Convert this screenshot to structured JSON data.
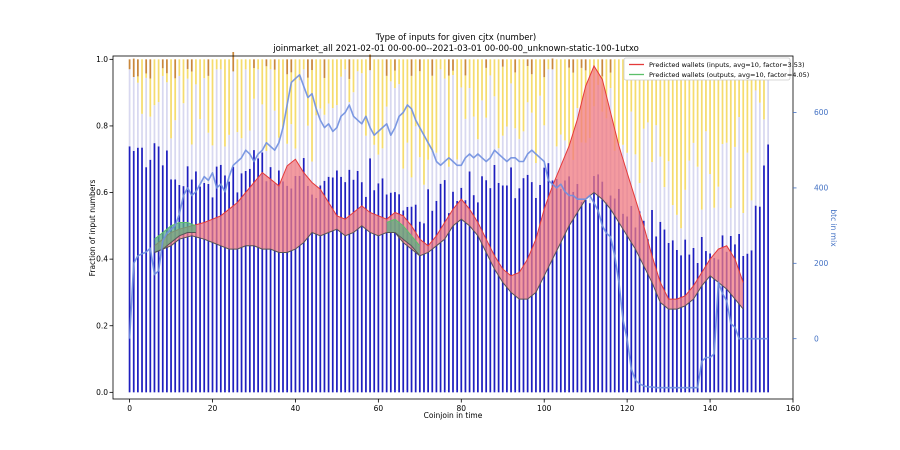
{
  "chart_data": {
    "type": "bar",
    "title": "Type of inputs for given cjtx (number)",
    "subtitle": "joinmarket_all 2021-02-01 00-00-00--2021-03-01 00-00-00_unknown-static-100-1utxo",
    "xlabel": "Coinjoin in time",
    "ylabel": "Fraction of input numbers",
    "ylabel_right": "btc in mix",
    "xlim": [
      -4,
      160
    ],
    "ylim": [
      -0.02,
      1.01
    ],
    "ylim_right": [
      -160,
      750
    ],
    "xticks": [
      "0",
      "20",
      "40",
      "60",
      "80",
      "100",
      "120",
      "140",
      "160"
    ],
    "yticks": [
      "0.0",
      "0.2",
      "0.4",
      "0.6",
      "0.8",
      "1.0"
    ],
    "yticks_right": [
      "0",
      "200",
      "400",
      "600"
    ],
    "grid": false,
    "legend_position": "top-right",
    "colors": {
      "fresh": "#1f1fbf",
      "remix": "#d8d8f0",
      "other": "#f5dc6e",
      "rare": "#c9883c",
      "btc_line": "#6f8fe0",
      "pred_inputs": "#e43a3a",
      "pred_inputs_fill": "#f07a80",
      "pred_outputs": "#5cbf6a",
      "pred_outputs_fill": "#5cae80"
    },
    "bar_series": {
      "fresh_fraction_key_x": [
        0,
        10,
        20,
        30,
        40,
        50,
        60,
        70,
        80,
        90,
        100,
        110,
        120,
        130,
        140,
        150,
        154
      ],
      "fresh_fraction_key_y": [
        0.74,
        0.66,
        0.63,
        0.68,
        0.66,
        0.62,
        0.65,
        0.56,
        0.6,
        0.64,
        0.63,
        0.62,
        0.58,
        0.44,
        0.45,
        0.44,
        0.72
      ]
    },
    "series": [
      {
        "name": "Predicted wallets (inputs, avg=10, factor=3.53)",
        "x": [
          6,
          8,
          10,
          12,
          15,
          18,
          20,
          22,
          24,
          26,
          28,
          30,
          32,
          34,
          36,
          38,
          40,
          42,
          44,
          46,
          48,
          50,
          52,
          54,
          56,
          58,
          60,
          62,
          64,
          66,
          68,
          70,
          72,
          74,
          76,
          78,
          80,
          82,
          84,
          86,
          88,
          90,
          92,
          94,
          96,
          98,
          100,
          102,
          104,
          106,
          108,
          110,
          112,
          114,
          116,
          118,
          120,
          122,
          124,
          126,
          128,
          130,
          132,
          134,
          136,
          138,
          140,
          142,
          144,
          146,
          148
        ],
        "upper": [
          0.44,
          0.46,
          0.48,
          0.49,
          0.5,
          0.51,
          0.52,
          0.53,
          0.55,
          0.57,
          0.6,
          0.63,
          0.66,
          0.64,
          0.62,
          0.68,
          0.7,
          0.66,
          0.63,
          0.61,
          0.57,
          0.53,
          0.52,
          0.54,
          0.56,
          0.54,
          0.53,
          0.52,
          0.54,
          0.53,
          0.5,
          0.46,
          0.44,
          0.47,
          0.51,
          0.55,
          0.58,
          0.55,
          0.51,
          0.46,
          0.41,
          0.37,
          0.35,
          0.36,
          0.4,
          0.46,
          0.55,
          0.62,
          0.68,
          0.74,
          0.82,
          0.92,
          0.98,
          0.94,
          0.84,
          0.74,
          0.66,
          0.58,
          0.5,
          0.41,
          0.33,
          0.28,
          0.28,
          0.29,
          0.32,
          0.36,
          0.4,
          0.43,
          0.44,
          0.4,
          0.33
        ],
        "lower": [
          0.42,
          0.43,
          0.44,
          0.46,
          0.47,
          0.46,
          0.45,
          0.44,
          0.43,
          0.43,
          0.44,
          0.44,
          0.43,
          0.43,
          0.42,
          0.42,
          0.43,
          0.45,
          0.48,
          0.47,
          0.48,
          0.49,
          0.47,
          0.48,
          0.5,
          0.48,
          0.47,
          0.48,
          0.48,
          0.45,
          0.43,
          0.41,
          0.42,
          0.44,
          0.46,
          0.5,
          0.52,
          0.5,
          0.47,
          0.42,
          0.37,
          0.33,
          0.3,
          0.28,
          0.28,
          0.3,
          0.35,
          0.4,
          0.45,
          0.5,
          0.54,
          0.58,
          0.6,
          0.58,
          0.55,
          0.51,
          0.47,
          0.43,
          0.38,
          0.33,
          0.27,
          0.25,
          0.25,
          0.26,
          0.28,
          0.32,
          0.35,
          0.33,
          0.31,
          0.28,
          0.25
        ]
      },
      {
        "name": "Predicted wallets (outputs, avg=10, factor=4.05)",
        "segments": [
          {
            "x": [
              6,
              8,
              10,
              12,
              14,
              16
            ],
            "upper": [
              0.46,
              0.48,
              0.5,
              0.51,
              0.51,
              0.5
            ],
            "lower": [
              0.42,
              0.43,
              0.45,
              0.47,
              0.48,
              0.48
            ]
          },
          {
            "x": [
              62,
              64,
              66,
              68,
              70
            ],
            "upper": [
              0.51,
              0.52,
              0.5,
              0.47,
              0.44
            ],
            "lower": [
              0.48,
              0.48,
              0.46,
              0.44,
              0.41
            ]
          }
        ]
      },
      {
        "name": "btc in mix",
        "axis": "right",
        "x": [
          0,
          1,
          2,
          3,
          4,
          5,
          6,
          7,
          8,
          9,
          10,
          11,
          12,
          13,
          14,
          15,
          16,
          17,
          18,
          19,
          20,
          21,
          22,
          23,
          24,
          25,
          26,
          27,
          28,
          29,
          30,
          31,
          32,
          33,
          34,
          35,
          36,
          37,
          38,
          39,
          40,
          41,
          42,
          43,
          44,
          45,
          46,
          47,
          48,
          49,
          50,
          51,
          52,
          53,
          54,
          55,
          56,
          57,
          58,
          59,
          60,
          61,
          62,
          63,
          64,
          65,
          66,
          67,
          68,
          69,
          70,
          71,
          72,
          73,
          74,
          75,
          76,
          77,
          78,
          79,
          80,
          81,
          82,
          83,
          84,
          85,
          86,
          87,
          88,
          89,
          90,
          91,
          92,
          93,
          94,
          95,
          96,
          97,
          98,
          99,
          100,
          101,
          102,
          103,
          104,
          105,
          106,
          107,
          108,
          109,
          110,
          111,
          112,
          113,
          114,
          115,
          116,
          117,
          118,
          119,
          120,
          121,
          122,
          123,
          124,
          125,
          126,
          127,
          128,
          129,
          130,
          131,
          132,
          133,
          134,
          135,
          136,
          137,
          138,
          139,
          140,
          141,
          142,
          143,
          144,
          145,
          146,
          147,
          148,
          149,
          150,
          151,
          152,
          153,
          154
        ],
        "values": [
          0,
          200,
          220,
          225,
          230,
          240,
          170,
          180,
          260,
          280,
          290,
          300,
          330,
          380,
          400,
          380,
          390,
          410,
          430,
          420,
          440,
          400,
          410,
          390,
          430,
          460,
          470,
          480,
          500,
          490,
          470,
          490,
          500,
          520,
          510,
          500,
          520,
          560,
          620,
          680,
          690,
          700,
          670,
          640,
          650,
          610,
          580,
          560,
          570,
          550,
          560,
          590,
          600,
          620,
          590,
          580,
          570,
          590,
          560,
          540,
          550,
          560,
          570,
          540,
          560,
          590,
          600,
          620,
          610,
          580,
          560,
          540,
          520,
          500,
          470,
          460,
          470,
          480,
          470,
          460,
          460,
          480,
          490,
          480,
          490,
          480,
          470,
          480,
          500,
          490,
          480,
          470,
          480,
          480,
          470,
          470,
          490,
          500,
          490,
          480,
          470,
          420,
          410,
          400,
          410,
          390,
          380,
          380,
          370,
          370,
          370,
          380,
          360,
          340,
          300,
          280,
          270,
          220,
          150,
          50,
          0,
          -80,
          -110,
          -120,
          -125,
          -128,
          -128,
          -130,
          -130,
          -130,
          -130,
          -130,
          -130,
          -130,
          -130,
          -130,
          -130,
          -130,
          -60,
          -50,
          -50,
          -40,
          150,
          120,
          100,
          40,
          30,
          0,
          0,
          0,
          0,
          0,
          0,
          0,
          0
        ]
      }
    ]
  }
}
